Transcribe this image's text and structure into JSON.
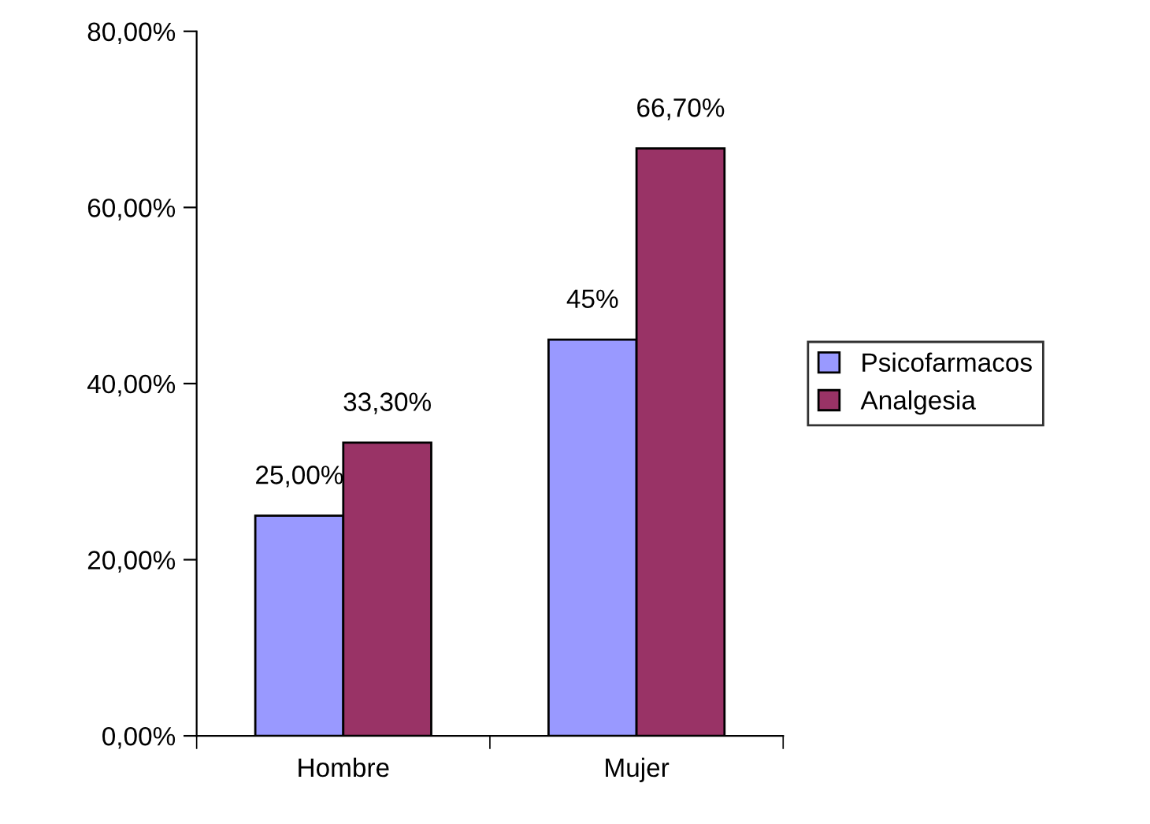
{
  "chart_data": {
    "type": "bar",
    "categories": [
      "Hombre",
      "Mujer"
    ],
    "series": [
      {
        "name": "Psicofarmacos",
        "color": "#9999ff",
        "values": [
          25,
          45
        ],
        "value_labels": [
          "25,00%",
          "45%"
        ]
      },
      {
        "name": "Analgesia",
        "color": "#993366",
        "values": [
          33.3,
          66.7
        ],
        "value_labels": [
          "33,30%",
          "66,70%"
        ]
      }
    ],
    "ylim": [
      0,
      80
    ],
    "yticks": [
      {
        "value": 0,
        "label": "0,00%"
      },
      {
        "value": 20,
        "label": "20,00%"
      },
      {
        "value": 40,
        "label": "40,00%"
      },
      {
        "value": 60,
        "label": "60,00%"
      },
      {
        "value": 80,
        "label": "80,00%"
      }
    ],
    "grid": false,
    "legend": "right"
  }
}
